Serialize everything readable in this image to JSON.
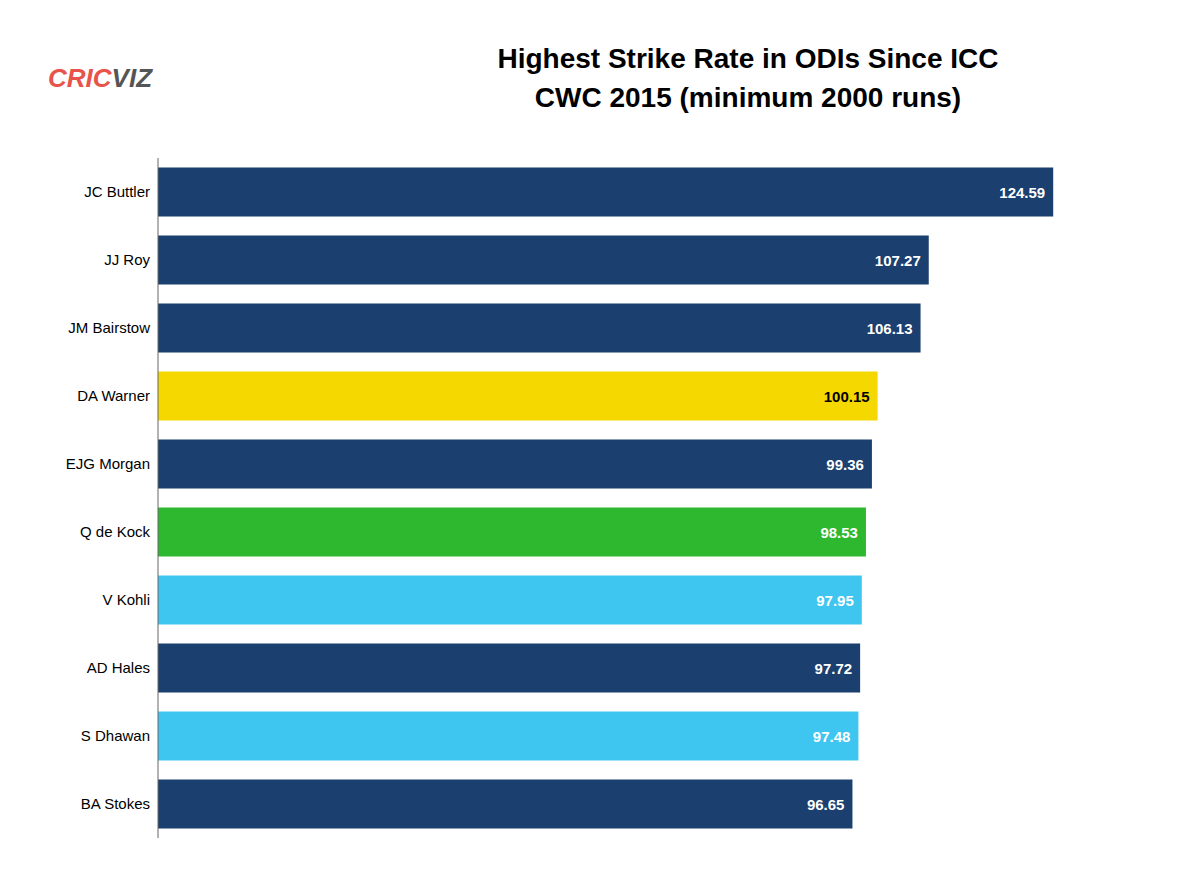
{
  "chart_data": {
    "type": "bar",
    "orientation": "horizontal",
    "title": "Highest Strike Rate in ODIs Since ICC\nCWC 2015 (minimum 2000 runs)",
    "categories": [
      "JC Buttler",
      "JJ Roy",
      "JM Bairstow",
      "DA Warner",
      "EJG Morgan",
      "Q de Kock",
      "V Kohli",
      "AD Hales",
      "S Dhawan",
      "BA Stokes"
    ],
    "values": [
      124.59,
      107.27,
      106.13,
      100.15,
      99.36,
      98.53,
      97.95,
      97.72,
      97.48,
      96.65
    ],
    "colors": [
      "#1b3f6e",
      "#1b3f6e",
      "#1b3f6e",
      "#f5d800",
      "#1b3f6e",
      "#2db830",
      "#3ec6f0",
      "#1b3f6e",
      "#3ec6f0",
      "#1b3f6e"
    ],
    "xlim": [
      0,
      135
    ],
    "data_labels": true,
    "tick_labels": "y",
    "grid": false,
    "annotations": [
      {
        "text": "CRIC",
        "color": "#e8534a"
      },
      {
        "text": "VIZ",
        "color": "#555555"
      }
    ]
  }
}
